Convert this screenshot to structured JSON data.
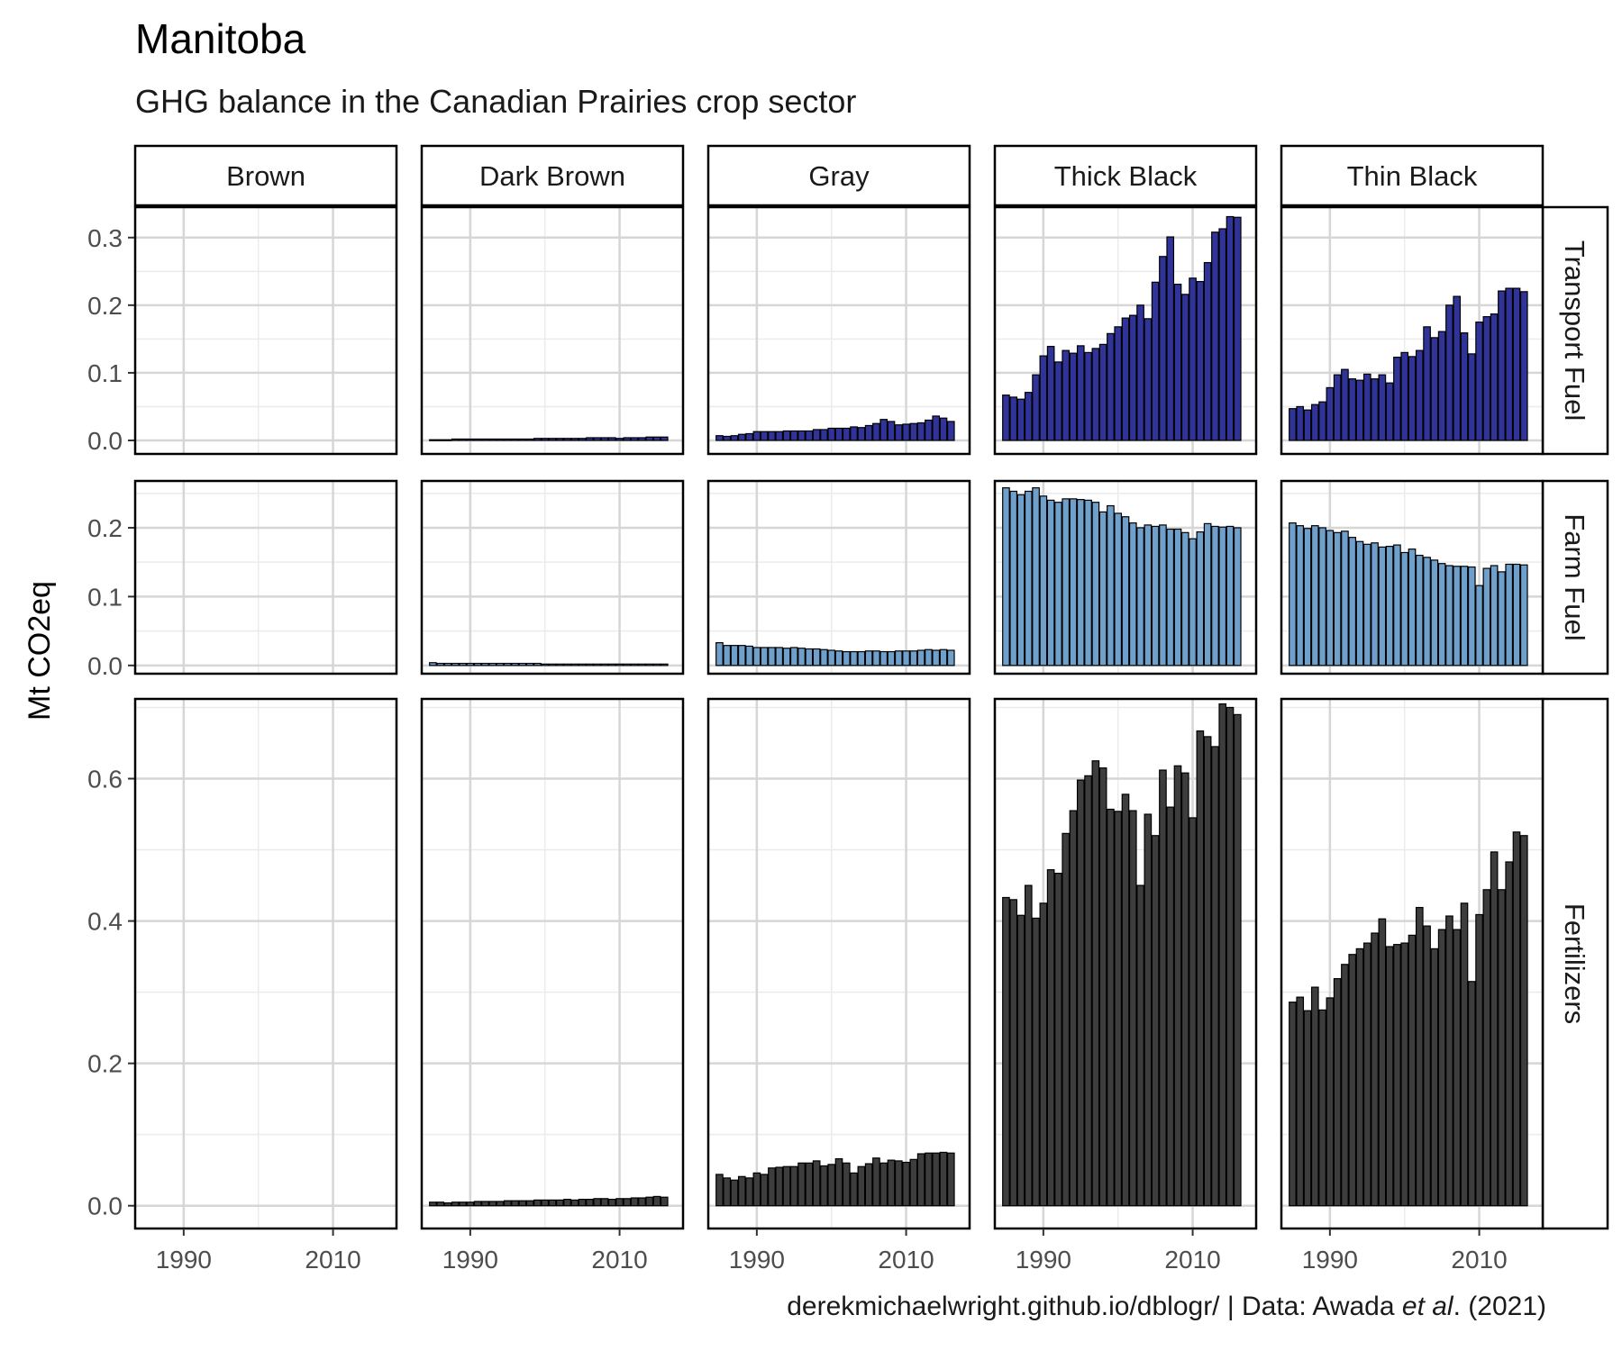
{
  "chart_data": {
    "type": "bar",
    "title": "Manitoba",
    "subtitle": "GHG balance in the Canadian Prairies crop sector",
    "ylabel": "Mt CO2eq",
    "xlabel": "",
    "caption_prefix": "derekmichaelwright.github.io/dblogr/ | Data: Awada ",
    "caption_italic": "et al",
    "caption_suffix": ". (2021)",
    "x_ticks": [
      1990,
      2010
    ],
    "xlim": [
      1983.5,
      2018.5
    ],
    "grid": true,
    "columns": [
      "Brown",
      "Dark Brown",
      "Gray",
      "Thick Black",
      "Thin Black"
    ],
    "rows": [
      {
        "name": "Transport Fuel",
        "color": "#303397",
        "ylim": [
          -0.02,
          0.345
        ],
        "y_ticks": [
          0.0,
          0.1,
          0.2,
          0.3
        ],
        "y_tick_labels": [
          "0.0",
          "0.1",
          "0.2",
          "0.3"
        ]
      },
      {
        "name": "Farm Fuel",
        "color": "#6fa0cb",
        "ylim": [
          -0.012,
          0.268
        ],
        "y_ticks": [
          0.0,
          0.1,
          0.2
        ],
        "y_tick_labels": [
          "0.0",
          "0.1",
          "0.2"
        ]
      },
      {
        "name": "Fertilizers",
        "color": "#3d3d3d",
        "ylim": [
          -0.032,
          0.712
        ],
        "y_ticks": [
          0.0,
          0.2,
          0.4,
          0.6
        ],
        "y_tick_labels": [
          "0.0",
          "0.2",
          "0.4",
          "0.6"
        ]
      }
    ],
    "years": [
      1985,
      1986,
      1987,
      1988,
      1989,
      1990,
      1991,
      1992,
      1993,
      1994,
      1995,
      1996,
      1997,
      1998,
      1999,
      2000,
      2001,
      2002,
      2003,
      2004,
      2005,
      2006,
      2007,
      2008,
      2009,
      2010,
      2011,
      2012,
      2013,
      2014,
      2015,
      2016
    ],
    "values": {
      "Transport Fuel": {
        "Brown": [],
        "Dark Brown": [
          0.001,
          0.001,
          0.001,
          0.002,
          0.002,
          0.002,
          0.002,
          0.002,
          0.002,
          0.002,
          0.002,
          0.002,
          0.002,
          0.002,
          0.003,
          0.003,
          0.003,
          0.003,
          0.003,
          0.003,
          0.003,
          0.004,
          0.004,
          0.004,
          0.004,
          0.003,
          0.004,
          0.004,
          0.004,
          0.005,
          0.005,
          0.005
        ],
        "Gray": [
          0.007,
          0.006,
          0.007,
          0.009,
          0.01,
          0.013,
          0.013,
          0.013,
          0.013,
          0.014,
          0.014,
          0.014,
          0.014,
          0.016,
          0.016,
          0.018,
          0.018,
          0.018,
          0.02,
          0.019,
          0.022,
          0.025,
          0.031,
          0.028,
          0.023,
          0.024,
          0.025,
          0.026,
          0.03,
          0.036,
          0.033,
          0.028
        ],
        "Thick Black": [
          0.067,
          0.064,
          0.061,
          0.071,
          0.097,
          0.125,
          0.139,
          0.116,
          0.133,
          0.129,
          0.14,
          0.13,
          0.136,
          0.142,
          0.158,
          0.168,
          0.181,
          0.185,
          0.2,
          0.18,
          0.234,
          0.272,
          0.301,
          0.231,
          0.216,
          0.24,
          0.235,
          0.263,
          0.308,
          0.313,
          0.331,
          0.33
        ],
        "Thin Black": [
          0.047,
          0.05,
          0.045,
          0.053,
          0.057,
          0.078,
          0.097,
          0.105,
          0.091,
          0.089,
          0.098,
          0.091,
          0.097,
          0.085,
          0.123,
          0.13,
          0.124,
          0.133,
          0.168,
          0.152,
          0.161,
          0.2,
          0.213,
          0.159,
          0.128,
          0.175,
          0.183,
          0.187,
          0.221,
          0.225,
          0.225,
          0.22
        ]
      },
      "Farm Fuel": {
        "Brown": [],
        "Dark Brown": [
          0.004,
          0.003,
          0.003,
          0.003,
          0.003,
          0.003,
          0.003,
          0.003,
          0.003,
          0.003,
          0.003,
          0.003,
          0.003,
          0.003,
          0.003,
          0.002,
          0.002,
          0.002,
          0.002,
          0.002,
          0.002,
          0.002,
          0.002,
          0.002,
          0.002,
          0.002,
          0.002,
          0.002,
          0.002,
          0.002,
          0.002,
          0.002
        ],
        "Gray": [
          0.033,
          0.029,
          0.029,
          0.029,
          0.028,
          0.026,
          0.026,
          0.026,
          0.026,
          0.025,
          0.026,
          0.025,
          0.024,
          0.024,
          0.023,
          0.022,
          0.021,
          0.02,
          0.02,
          0.02,
          0.021,
          0.021,
          0.02,
          0.02,
          0.021,
          0.021,
          0.021,
          0.022,
          0.023,
          0.022,
          0.023,
          0.022
        ],
        "Thick Black": [
          0.258,
          0.253,
          0.248,
          0.253,
          0.258,
          0.246,
          0.24,
          0.237,
          0.242,
          0.242,
          0.241,
          0.24,
          0.237,
          0.223,
          0.232,
          0.221,
          0.216,
          0.207,
          0.2,
          0.204,
          0.202,
          0.204,
          0.198,
          0.198,
          0.193,
          0.184,
          0.194,
          0.206,
          0.202,
          0.201,
          0.202,
          0.2
        ],
        "Thin Black": [
          0.207,
          0.203,
          0.199,
          0.203,
          0.2,
          0.196,
          0.193,
          0.195,
          0.186,
          0.18,
          0.176,
          0.178,
          0.172,
          0.173,
          0.175,
          0.164,
          0.169,
          0.16,
          0.157,
          0.153,
          0.148,
          0.145,
          0.144,
          0.144,
          0.143,
          0.116,
          0.141,
          0.145,
          0.136,
          0.147,
          0.147,
          0.146
        ]
      },
      "Fertilizers": {
        "Brown": [],
        "Dark Brown": [
          0.005,
          0.005,
          0.004,
          0.005,
          0.005,
          0.005,
          0.006,
          0.006,
          0.006,
          0.006,
          0.007,
          0.007,
          0.007,
          0.007,
          0.008,
          0.008,
          0.008,
          0.008,
          0.009,
          0.008,
          0.009,
          0.009,
          0.01,
          0.01,
          0.009,
          0.01,
          0.01,
          0.011,
          0.011,
          0.012,
          0.013,
          0.012
        ],
        "Gray": [
          0.044,
          0.039,
          0.036,
          0.041,
          0.039,
          0.046,
          0.044,
          0.053,
          0.054,
          0.055,
          0.055,
          0.06,
          0.06,
          0.063,
          0.056,
          0.058,
          0.066,
          0.06,
          0.046,
          0.055,
          0.059,
          0.067,
          0.06,
          0.064,
          0.063,
          0.061,
          0.065,
          0.073,
          0.074,
          0.074,
          0.075,
          0.074
        ],
        "Thick Black": [
          0.433,
          0.43,
          0.408,
          0.45,
          0.404,
          0.425,
          0.472,
          0.467,
          0.523,
          0.555,
          0.598,
          0.604,
          0.625,
          0.615,
          0.557,
          0.554,
          0.578,
          0.555,
          0.45,
          0.55,
          0.52,
          0.612,
          0.56,
          0.618,
          0.608,
          0.545,
          0.667,
          0.659,
          0.645,
          0.705,
          0.7,
          0.69
        ],
        "Thin Black": [
          0.286,
          0.293,
          0.274,
          0.307,
          0.275,
          0.292,
          0.319,
          0.339,
          0.353,
          0.361,
          0.369,
          0.383,
          0.403,
          0.364,
          0.367,
          0.369,
          0.38,
          0.419,
          0.393,
          0.361,
          0.388,
          0.407,
          0.388,
          0.425,
          0.315,
          0.409,
          0.444,
          0.497,
          0.444,
          0.483,
          0.525,
          0.52
        ]
      }
    }
  }
}
